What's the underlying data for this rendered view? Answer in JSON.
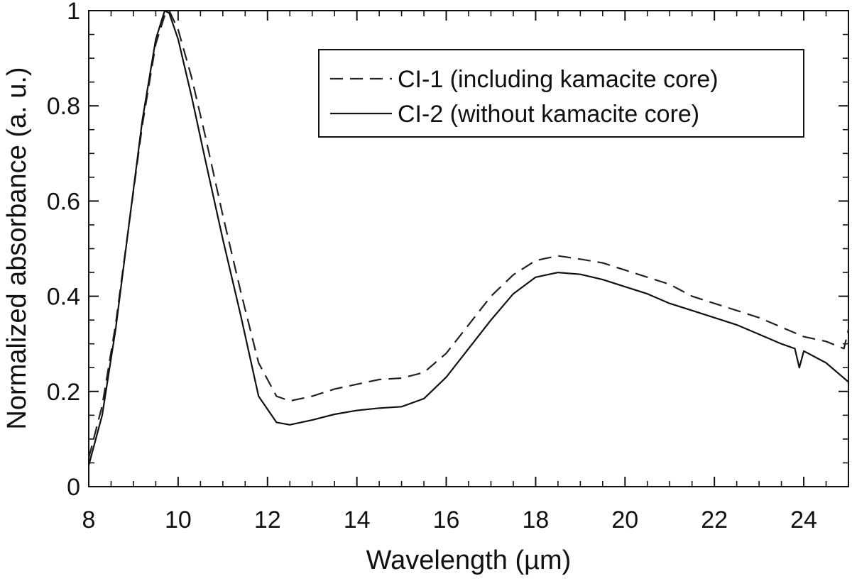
{
  "chart_data": {
    "type": "line",
    "xlabel": "Wavelength (µm)",
    "ylabel": "Normalized absorbance (a. u.)",
    "xlim": [
      8,
      25
    ],
    "ylim": [
      0,
      1
    ],
    "x_ticks": [
      8,
      10,
      12,
      14,
      16,
      18,
      20,
      22,
      24
    ],
    "x_tick_labels": [
      "8",
      "10",
      "12",
      "14",
      "16",
      "18",
      "20",
      "22",
      "24"
    ],
    "y_ticks": [
      0,
      0.2,
      0.4,
      0.6,
      0.8,
      1
    ],
    "y_tick_labels": [
      "0",
      "0.2",
      "0.4",
      "0.6",
      "0.8",
      "1"
    ],
    "grid": false,
    "legend_position": "top-right",
    "series": [
      {
        "name": "CI-1 (including kamacite core)",
        "style": "dashed",
        "color": "#222222",
        "points": [
          [
            8.0,
            0.06
          ],
          [
            8.3,
            0.17
          ],
          [
            8.6,
            0.34
          ],
          [
            8.9,
            0.55
          ],
          [
            9.2,
            0.76
          ],
          [
            9.5,
            0.93
          ],
          [
            9.7,
            0.99
          ],
          [
            9.8,
            1.0
          ],
          [
            10.0,
            0.96
          ],
          [
            10.3,
            0.86
          ],
          [
            10.6,
            0.74
          ],
          [
            11.0,
            0.57
          ],
          [
            11.4,
            0.41
          ],
          [
            11.8,
            0.26
          ],
          [
            12.2,
            0.19
          ],
          [
            12.5,
            0.18
          ],
          [
            13.0,
            0.19
          ],
          [
            13.5,
            0.205
          ],
          [
            14.0,
            0.215
          ],
          [
            14.5,
            0.225
          ],
          [
            15.0,
            0.228
          ],
          [
            15.5,
            0.24
          ],
          [
            16.0,
            0.28
          ],
          [
            16.5,
            0.34
          ],
          [
            17.0,
            0.4
          ],
          [
            17.5,
            0.445
          ],
          [
            18.0,
            0.475
          ],
          [
            18.5,
            0.485
          ],
          [
            19.0,
            0.478
          ],
          [
            19.5,
            0.47
          ],
          [
            20.0,
            0.455
          ],
          [
            20.5,
            0.44
          ],
          [
            21.0,
            0.425
          ],
          [
            21.5,
            0.4
          ],
          [
            22.0,
            0.385
          ],
          [
            22.5,
            0.37
          ],
          [
            23.0,
            0.355
          ],
          [
            23.5,
            0.335
          ],
          [
            24.0,
            0.315
          ],
          [
            24.5,
            0.305
          ],
          [
            24.9,
            0.29
          ],
          [
            25.0,
            0.33
          ]
        ]
      },
      {
        "name": "CI-2 (without kamacite core)",
        "style": "solid",
        "color": "#111111",
        "points": [
          [
            8.0,
            0.045
          ],
          [
            8.3,
            0.15
          ],
          [
            8.6,
            0.33
          ],
          [
            8.9,
            0.55
          ],
          [
            9.2,
            0.77
          ],
          [
            9.5,
            0.94
          ],
          [
            9.7,
            1.0
          ],
          [
            9.8,
            0.995
          ],
          [
            10.0,
            0.94
          ],
          [
            10.3,
            0.82
          ],
          [
            10.6,
            0.69
          ],
          [
            11.0,
            0.52
          ],
          [
            11.4,
            0.36
          ],
          [
            11.8,
            0.19
          ],
          [
            12.2,
            0.135
          ],
          [
            12.5,
            0.13
          ],
          [
            13.0,
            0.14
          ],
          [
            13.5,
            0.152
          ],
          [
            14.0,
            0.16
          ],
          [
            14.5,
            0.165
          ],
          [
            15.0,
            0.168
          ],
          [
            15.5,
            0.185
          ],
          [
            16.0,
            0.23
          ],
          [
            16.5,
            0.29
          ],
          [
            17.0,
            0.35
          ],
          [
            17.5,
            0.405
          ],
          [
            18.0,
            0.44
          ],
          [
            18.5,
            0.45
          ],
          [
            19.0,
            0.446
          ],
          [
            19.5,
            0.435
          ],
          [
            20.0,
            0.42
          ],
          [
            20.5,
            0.405
          ],
          [
            21.0,
            0.385
          ],
          [
            21.5,
            0.37
          ],
          [
            22.0,
            0.355
          ],
          [
            22.5,
            0.34
          ],
          [
            23.0,
            0.32
          ],
          [
            23.5,
            0.3
          ],
          [
            23.8,
            0.29
          ],
          [
            23.9,
            0.25
          ],
          [
            24.0,
            0.285
          ],
          [
            24.5,
            0.26
          ],
          [
            25.0,
            0.22
          ]
        ]
      }
    ]
  }
}
